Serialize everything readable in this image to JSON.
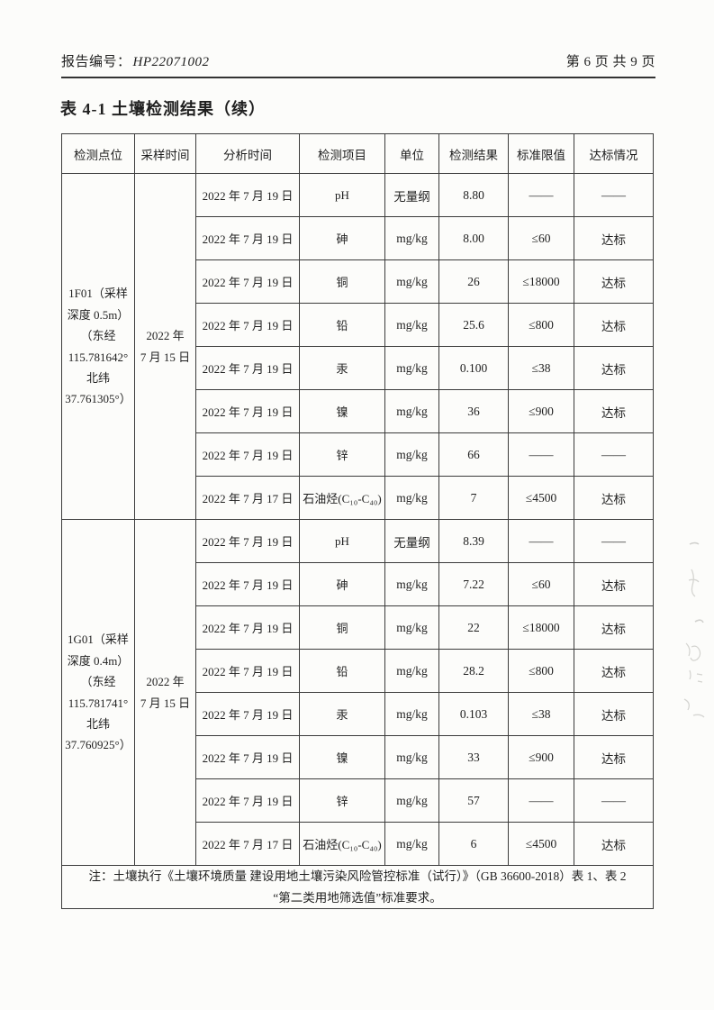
{
  "page": {
    "report_label": "报告编号：",
    "report_number": "HP22071002",
    "page_info": "第 6 页 共 9 页",
    "title": "表 4-1 土壤检测结果（续）"
  },
  "table": {
    "headers": [
      "检测点位",
      "采样时间",
      "分析时间",
      "检测项目",
      "单位",
      "检测结果",
      "标准限值",
      "达标情况"
    ],
    "groups": [
      {
        "point_lines": [
          "1F01（采样",
          "深度 0.5m）",
          "（东经",
          "115.781642°",
          "北纬",
          "37.761305°）"
        ],
        "sampling_time_lines": [
          "2022 年",
          "7 月 15 日"
        ],
        "rows": [
          {
            "analysis_date": "2022 年 7 月 19 日",
            "item": "pH",
            "unit": "无量纲",
            "result": "8.80",
            "limit": "——",
            "status": "——"
          },
          {
            "analysis_date": "2022 年 7 月 19 日",
            "item": "砷",
            "unit": "mg/kg",
            "result": "8.00",
            "limit": "≤60",
            "status": "达标"
          },
          {
            "analysis_date": "2022 年 7 月 19 日",
            "item": "铜",
            "unit": "mg/kg",
            "result": "26",
            "limit": "≤18000",
            "status": "达标"
          },
          {
            "analysis_date": "2022 年 7 月 19 日",
            "item": "铅",
            "unit": "mg/kg",
            "result": "25.6",
            "limit": "≤800",
            "status": "达标"
          },
          {
            "analysis_date": "2022 年 7 月 19 日",
            "item": "汞",
            "unit": "mg/kg",
            "result": "0.100",
            "limit": "≤38",
            "status": "达标"
          },
          {
            "analysis_date": "2022 年 7 月 19 日",
            "item": "镍",
            "unit": "mg/kg",
            "result": "36",
            "limit": "≤900",
            "status": "达标"
          },
          {
            "analysis_date": "2022 年 7 月 19 日",
            "item": "锌",
            "unit": "mg/kg",
            "result": "66",
            "limit": "——",
            "status": "——"
          },
          {
            "analysis_date": "2022 年 7 月 17 日",
            "item": "石油烃(C₁₀-C₄₀)",
            "unit": "mg/kg",
            "result": "7",
            "limit": "≤4500",
            "status": "达标"
          }
        ]
      },
      {
        "point_lines": [
          "1G01（采样",
          "深度 0.4m）",
          "（东经",
          "115.781741°",
          "北纬",
          "37.760925°）"
        ],
        "sampling_time_lines": [
          "2022 年",
          "7 月 15 日"
        ],
        "rows": [
          {
            "analysis_date": "2022 年 7 月 19 日",
            "item": "pH",
            "unit": "无量纲",
            "result": "8.39",
            "limit": "——",
            "status": "——"
          },
          {
            "analysis_date": "2022 年 7 月 19 日",
            "item": "砷",
            "unit": "mg/kg",
            "result": "7.22",
            "limit": "≤60",
            "status": "达标"
          },
          {
            "analysis_date": "2022 年 7 月 19 日",
            "item": "铜",
            "unit": "mg/kg",
            "result": "22",
            "limit": "≤18000",
            "status": "达标"
          },
          {
            "analysis_date": "2022 年 7 月 19 日",
            "item": "铅",
            "unit": "mg/kg",
            "result": "28.2",
            "limit": "≤800",
            "status": "达标"
          },
          {
            "analysis_date": "2022 年 7 月 19 日",
            "item": "汞",
            "unit": "mg/kg",
            "result": "0.103",
            "limit": "≤38",
            "status": "达标"
          },
          {
            "analysis_date": "2022 年 7 月 19 日",
            "item": "镍",
            "unit": "mg/kg",
            "result": "33",
            "limit": "≤900",
            "status": "达标"
          },
          {
            "analysis_date": "2022 年 7 月 19 日",
            "item": "锌",
            "unit": "mg/kg",
            "result": "57",
            "limit": "——",
            "status": "——"
          },
          {
            "analysis_date": "2022 年 7 月 17 日",
            "item": "石油烃(C₁₀-C₄₀)",
            "unit": "mg/kg",
            "result": "6",
            "limit": "≤4500",
            "status": "达标"
          }
        ]
      }
    ],
    "note_lines": [
      "注：土壤执行《土壤环境质量 建设用地土壤污染风险管控标准（试行）》（GB 36600-2018）表 1、表 2",
      "“第二类用地筛选值”标准要求。"
    ]
  }
}
